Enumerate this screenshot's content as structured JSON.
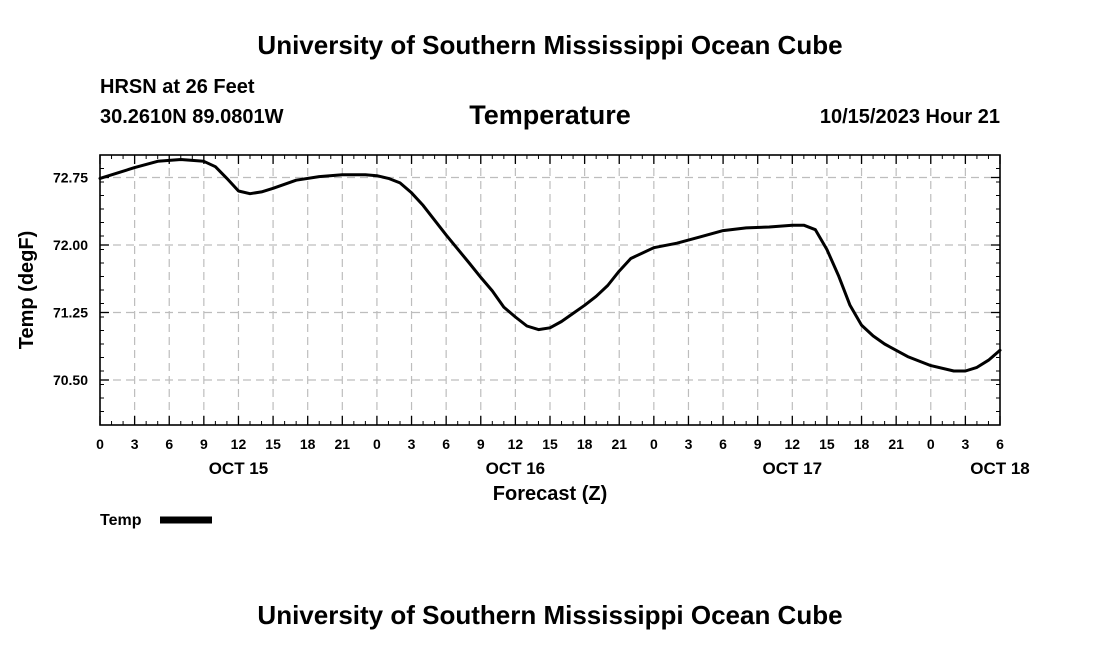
{
  "header": {
    "site_title": "University of Southern Mississippi Ocean Cube",
    "station": "HRSN at 26 Feet",
    "coords": "30.2610N  89.0801W",
    "plot_title": "Temperature",
    "datetime": "10/15/2023 Hour 21",
    "footer_title": "University of Southern Mississippi Ocean Cube"
  },
  "chart_data": {
    "type": "line",
    "title": "Temperature",
    "xlabel": "Forecast (Z)",
    "ylabel": "Temp (degF)",
    "ylim": [
      70.0,
      73.0
    ],
    "xlim": [
      0,
      78
    ],
    "grid": true,
    "y_ticks": [
      "72.75",
      "72.00",
      "71.25",
      "70.50"
    ],
    "y_tick_values": [
      72.75,
      72.0,
      71.25,
      70.5
    ],
    "x_tick_labels": [
      "0",
      "3",
      "6",
      "9",
      "12",
      "15",
      "18",
      "21",
      "0",
      "3",
      "6",
      "9",
      "12",
      "15",
      "18",
      "21",
      "0",
      "3",
      "6",
      "9",
      "12",
      "15",
      "18",
      "21",
      "0",
      "3",
      "6"
    ],
    "date_labels": [
      {
        "label": "OCT 15",
        "hour": 12
      },
      {
        "label": "OCT 16",
        "hour": 36
      },
      {
        "label": "OCT 17",
        "hour": 60
      },
      {
        "label": "OCT 18",
        "hour": 78
      }
    ],
    "legend": {
      "label": "Temp",
      "placement": "bottom-left"
    },
    "series": [
      {
        "name": "Temp",
        "color": "#000000",
        "x": [
          0,
          3,
          5,
          7,
          9,
          10,
          11,
          12,
          13,
          14,
          15,
          17,
          19,
          21,
          23,
          24,
          25,
          26,
          27,
          28,
          30,
          32,
          33,
          34,
          35,
          36,
          37,
          38,
          39,
          40,
          41,
          42,
          43,
          44,
          45,
          46,
          48,
          50,
          52,
          54,
          56,
          58,
          60,
          61,
          62,
          63,
          64,
          65,
          66,
          67,
          68,
          70,
          72,
          74,
          75,
          76,
          77,
          78
        ],
        "values": [
          72.74,
          72.86,
          72.93,
          72.95,
          72.93,
          72.87,
          72.74,
          72.6,
          72.57,
          72.59,
          72.63,
          72.72,
          72.76,
          72.78,
          72.78,
          72.77,
          72.74,
          72.69,
          72.58,
          72.44,
          72.11,
          71.8,
          71.64,
          71.49,
          71.31,
          71.2,
          71.1,
          71.06,
          71.08,
          71.15,
          71.24,
          71.33,
          71.43,
          71.55,
          71.71,
          71.85,
          71.97,
          72.02,
          72.09,
          72.16,
          72.19,
          72.2,
          72.22,
          72.22,
          72.17,
          71.95,
          71.66,
          71.33,
          71.11,
          70.99,
          70.9,
          70.76,
          70.66,
          70.6,
          70.6,
          70.64,
          70.72,
          70.83
        ]
      }
    ]
  }
}
